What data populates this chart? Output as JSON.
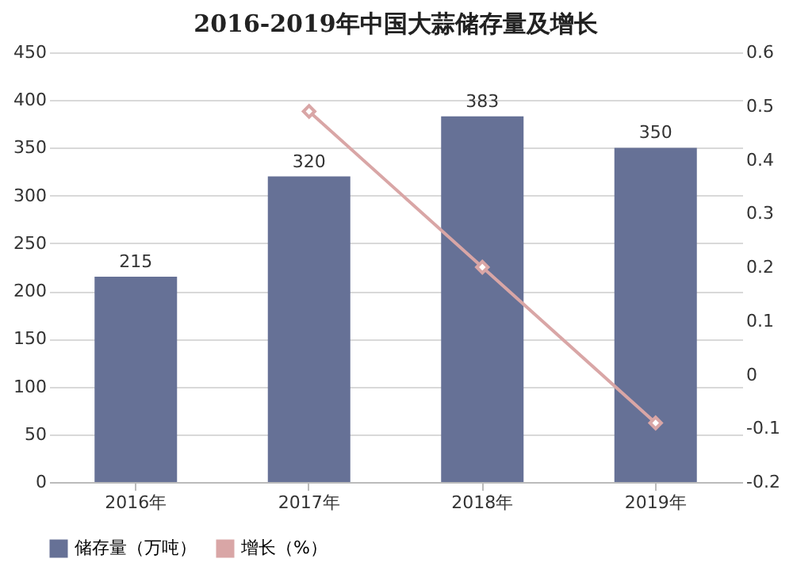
{
  "chart_data": {
    "type": "bar",
    "title": "2016-2019年中国大蒜储存量及增长",
    "categories": [
      "2016年",
      "2017年",
      "2018年",
      "2019年"
    ],
    "series": [
      {
        "name": "储存量（万吨）",
        "color": "#667196",
        "values": [
          215,
          320,
          383,
          350
        ],
        "data_labels": true
      },
      {
        "name": "增长（%）",
        "type": "line",
        "axis": "y2",
        "color": "#d9a6a6",
        "marker": "diamond",
        "values": [
          null,
          0.49,
          0.2,
          -0.09
        ]
      }
    ],
    "ylim": [
      0,
      450
    ],
    "yticks": [
      0,
      50,
      100,
      150,
      200,
      250,
      300,
      350,
      400,
      450
    ],
    "y2lim": [
      -0.2,
      0.6
    ],
    "y2ticks": [
      -0.2,
      -0.1,
      0,
      0.1,
      0.2,
      0.3,
      0.4,
      0.5,
      0.6
    ],
    "grid": "y",
    "legend": "bottom"
  }
}
